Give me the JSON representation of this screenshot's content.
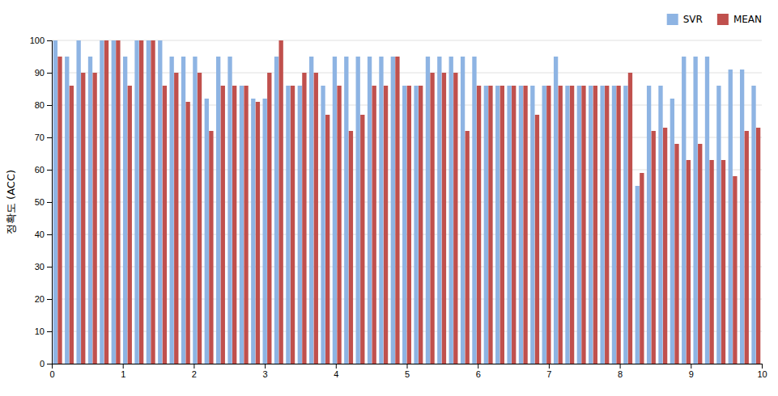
{
  "chart_data": {
    "type": "bar",
    "ylabel": "정확도 (ACC)",
    "categories": [
      null,
      null,
      null,
      null,
      null,
      null,
      null,
      null,
      null,
      null,
      null,
      null,
      null,
      null,
      null,
      null,
      null,
      null,
      null,
      null,
      null,
      null,
      null,
      null,
      null,
      null,
      null,
      null,
      null,
      null,
      null,
      null,
      null,
      null,
      null,
      null,
      null,
      null,
      null,
      null,
      null,
      null,
      null,
      null,
      null,
      null,
      null,
      null,
      null,
      null,
      null,
      null,
      null,
      null,
      null,
      null,
      null,
      null,
      null,
      null,
      null
    ],
    "series": [
      {
        "name": "SVR",
        "color": "#8EB4E3",
        "values": [
          100,
          95,
          100,
          95,
          100,
          100,
          95,
          100,
          100,
          100,
          95,
          95,
          95,
          82,
          95,
          95,
          86,
          82,
          82,
          95,
          86,
          86,
          95,
          86,
          95,
          95,
          95,
          95,
          95,
          95,
          86,
          86,
          95,
          95,
          95,
          95,
          95,
          86,
          86,
          86,
          86,
          86,
          86,
          95,
          86,
          86,
          86,
          86,
          86,
          86,
          55,
          86,
          86,
          82,
          95,
          95,
          95,
          86,
          91,
          91,
          86
        ]
      },
      {
        "name": "MEAN",
        "color": "#C0504D",
        "values": [
          95,
          86,
          90,
          90,
          100,
          100,
          86,
          100,
          100,
          86,
          90,
          81,
          90,
          72,
          86,
          86,
          86,
          81,
          90,
          100,
          86,
          90,
          90,
          77,
          86,
          72,
          77,
          86,
          86,
          95,
          86,
          86,
          90,
          90,
          90,
          72,
          86,
          86,
          86,
          86,
          86,
          77,
          86,
          86,
          86,
          86,
          86,
          86,
          86,
          90,
          59,
          72,
          73,
          68,
          63,
          68,
          63,
          63,
          58,
          72,
          73
        ]
      }
    ],
    "xlim": [
      0,
      10
    ],
    "xticks": [
      0,
      1,
      2,
      3,
      4,
      5,
      6,
      7,
      8,
      9,
      10
    ],
    "ylim": [
      0,
      100
    ],
    "yticks": [
      0,
      10,
      20,
      30,
      40,
      50,
      60,
      70,
      80,
      90,
      100
    ],
    "grid": true,
    "legend": "upper right"
  }
}
